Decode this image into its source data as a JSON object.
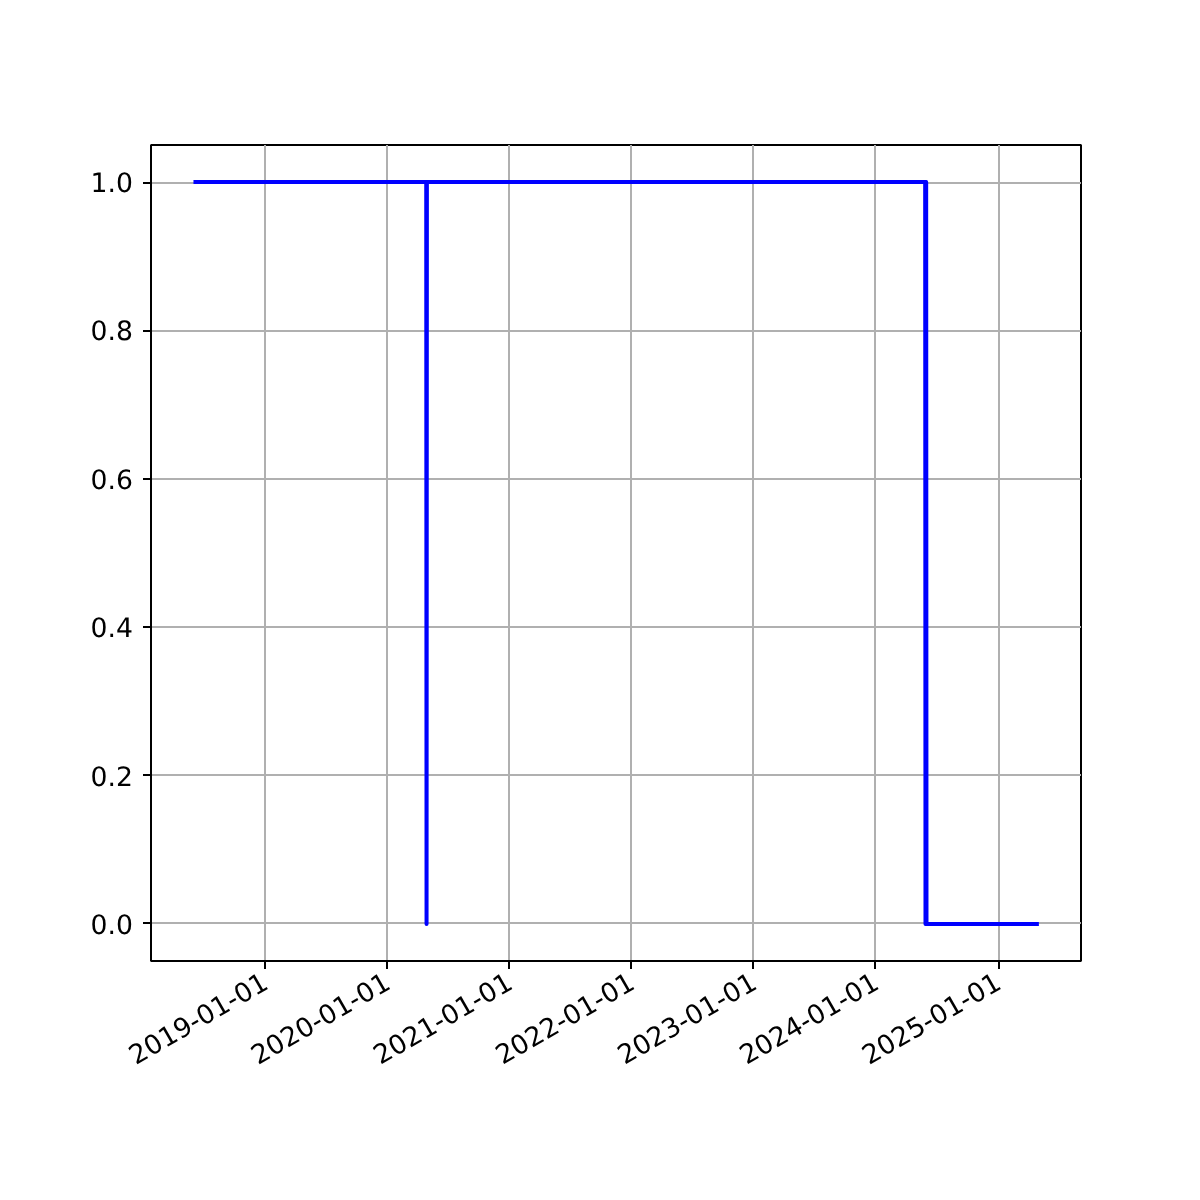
{
  "chart_data": {
    "type": "line",
    "x": [
      "2018-06-01",
      "2020-04-27",
      "2020-04-28",
      "2020-04-29",
      "2024-05-28",
      "2024-05-29",
      "2024-05-31",
      "2024-06-01",
      "2024-06-03",
      "2025-05-03"
    ],
    "series": [
      {
        "color": "#0000ff",
        "values": [
          1,
          1,
          0,
          1,
          1,
          0,
          1,
          0,
          0,
          0
        ]
      }
    ],
    "xlim": [
      "2018-01-25",
      "2025-09-06"
    ],
    "xticks": [
      {
        "value": "2019-01-01",
        "label": "2019-01-01"
      },
      {
        "value": "2020-01-01",
        "label": "2020-01-01"
      },
      {
        "value": "2021-01-01",
        "label": "2021-01-01"
      },
      {
        "value": "2022-01-01",
        "label": "2022-01-01"
      },
      {
        "value": "2023-01-01",
        "label": "2023-01-01"
      },
      {
        "value": "2024-01-01",
        "label": "2024-01-01"
      },
      {
        "value": "2025-01-01",
        "label": "2025-01-01"
      }
    ],
    "ylim": [
      -0.05,
      1.05
    ],
    "yticks": [
      {
        "value": 0,
        "label": "0.0"
      },
      {
        "value": 0.2,
        "label": "0.2"
      },
      {
        "value": 0.4,
        "label": "0.4"
      },
      {
        "value": 0.6,
        "label": "0.6"
      },
      {
        "value": 0.8,
        "label": "0.8"
      },
      {
        "value": 1,
        "label": "1.0"
      }
    ],
    "grid": true,
    "marker": "none",
    "line_style": "solid"
  }
}
